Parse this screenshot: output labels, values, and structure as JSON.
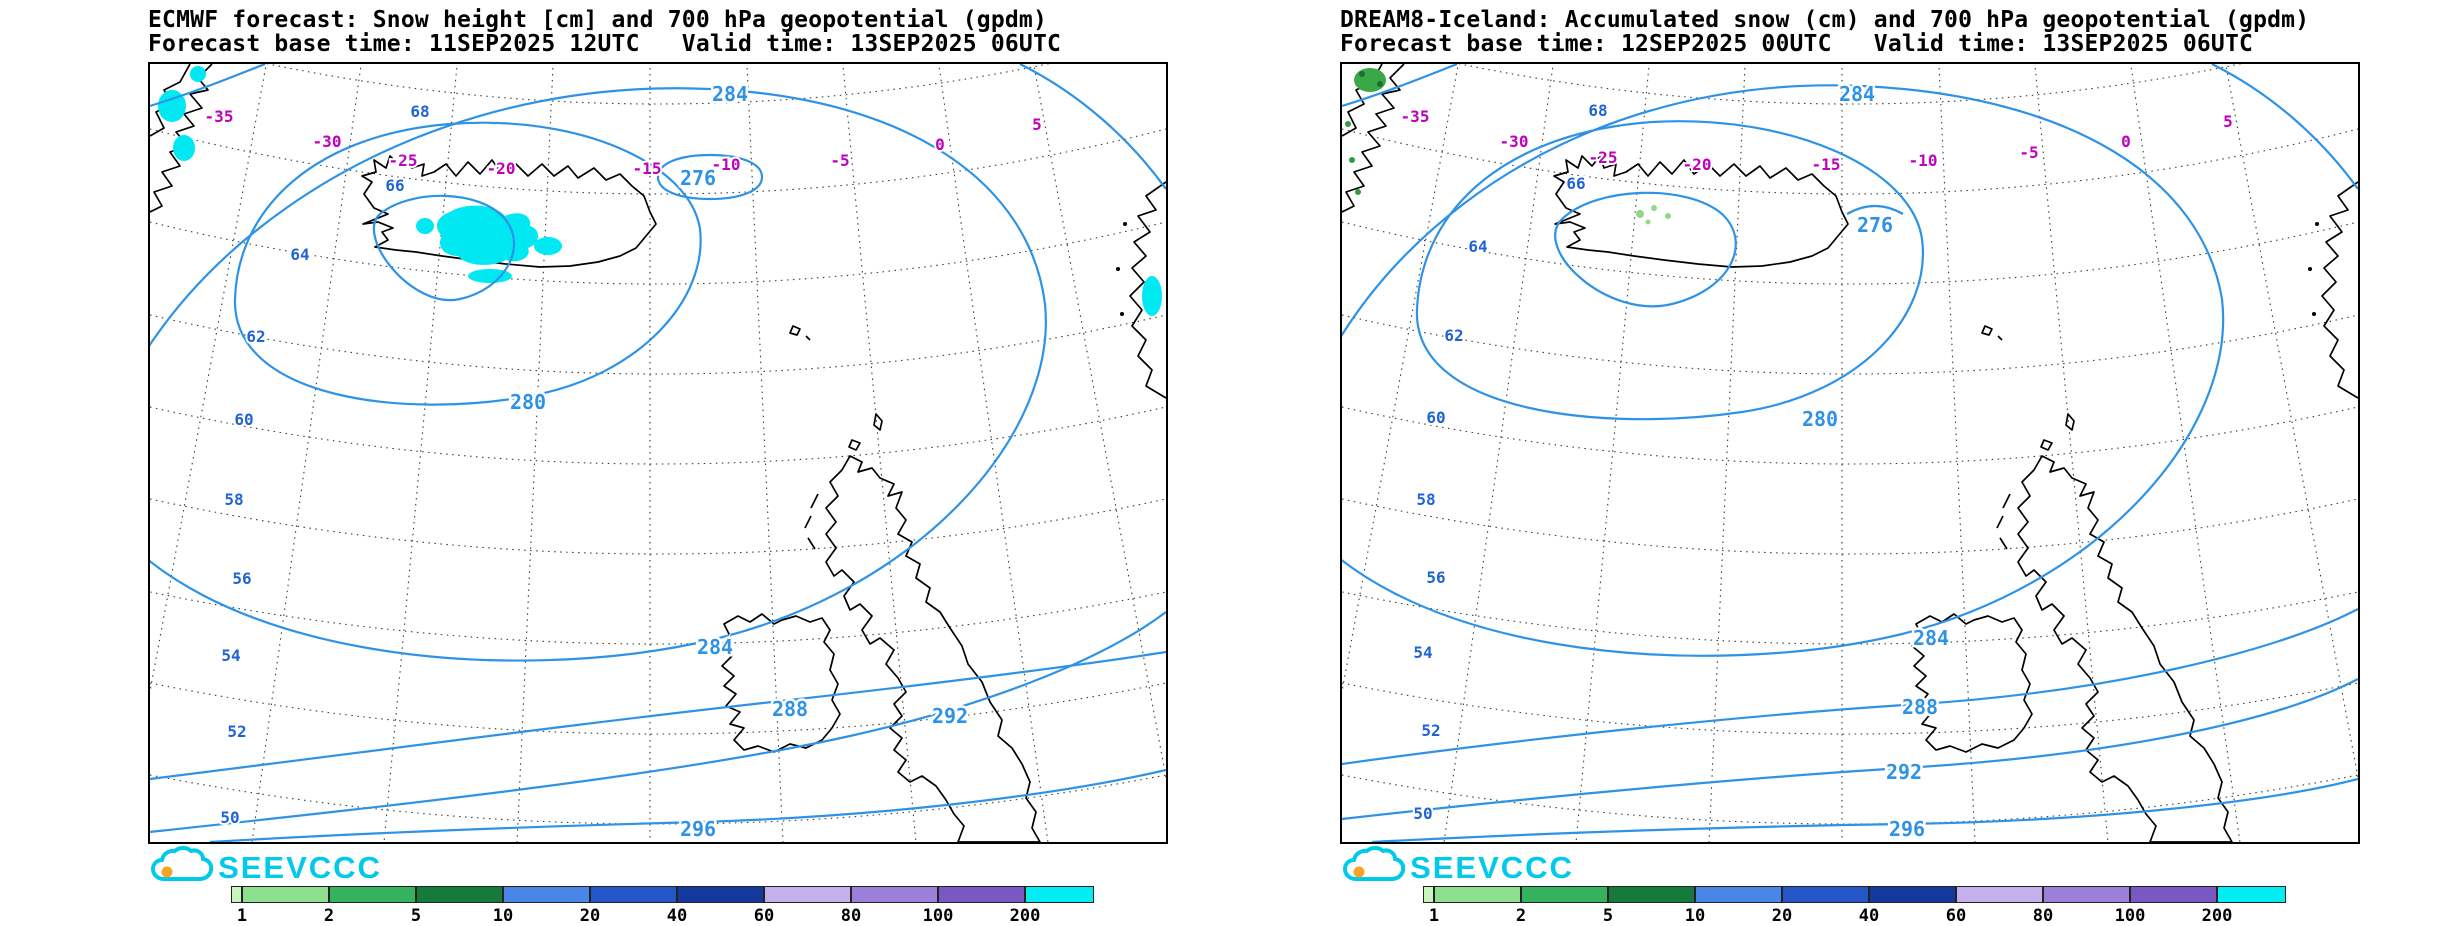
{
  "page": {
    "background": "#ffffff"
  },
  "branding": {
    "logo_text": "SEEVCCC",
    "logo_color": "#00c9ea",
    "logo_sun_color": "#f7a428"
  },
  "colors": {
    "contour_blue": "#2e93e6",
    "latitude_blue": "#1f63d6",
    "temperature_magenta": "#bf00bf"
  },
  "colorbar": {
    "labels": [
      "1",
      "2",
      "5",
      "10",
      "20",
      "40",
      "60",
      "80",
      "100",
      "200"
    ],
    "segment_colors": [
      "#c9f4bc",
      "#8ce08e",
      "#34b25e",
      "#157a3c",
      "#4a86e8",
      "#2456c8",
      "#15389e",
      "#c4b0ec",
      "#9c7fd8",
      "#7a58c4",
      "#00eef2"
    ]
  },
  "panels": [
    {
      "title": "ECMWF forecast: Snow height [cm] and 700 hPa geopotential (gpdm)",
      "base_line": "Forecast base time: 11SEP2025 12UTC   Valid time: 13SEP2025 06UTC",
      "geopotential_labels": {
        "g276": "276",
        "g280": "280",
        "g284_top": "284",
        "g284_bottom": "284",
        "g288": "288",
        "g292": "292",
        "g296": "296"
      },
      "latitude_labels": {
        "l68": "68",
        "l66": "66",
        "l64": "64",
        "l62": "62",
        "l60": "60",
        "l58": "58",
        "l56": "56",
        "l54": "54",
        "l52": "52",
        "l50": "50"
      },
      "temperature_labels": {
        "m35": "-35",
        "m30": "-30",
        "m25": "-25",
        "m20": "-20",
        "m15": "-15",
        "m10": "-10",
        "m5": "-5",
        "p0": "0",
        "p5": "5"
      }
    },
    {
      "title": "DREAM8-Iceland: Accumulated snow (cm) and 700 hPa geopotential (gpdm)",
      "base_line": "Forecast base time: 12SEP2025 00UTC   Valid time: 13SEP2025 06UTC",
      "geopotential_labels": {
        "g276": "276",
        "g280": "280",
        "g284_top": "284",
        "g284_bottom": "284",
        "g288": "288",
        "g292": "292",
        "g296": "296"
      },
      "latitude_labels": {
        "l68": "68",
        "l66": "66",
        "l64": "64",
        "l62": "62",
        "l60": "60",
        "l58": "58",
        "l56": "56",
        "l54": "54",
        "l52": "52",
        "l50": "50"
      },
      "temperature_labels": {
        "m35": "-35",
        "m30": "-30",
        "m25": "-25",
        "m20": "-20",
        "m15": "-15",
        "m10": "-10",
        "m5": "-5",
        "p0": "0",
        "p5": "5"
      }
    }
  ]
}
